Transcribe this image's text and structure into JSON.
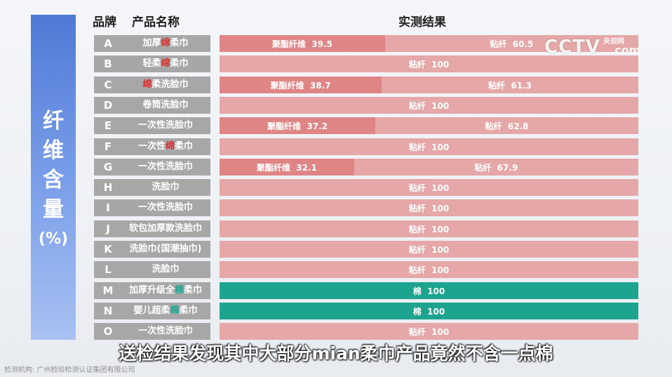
{
  "side_label": {
    "chars": [
      "纤",
      "维",
      "含",
      "量"
    ],
    "unit": "(%)"
  },
  "headers": {
    "brand": "品牌",
    "name": "产品名称",
    "result": "实测结果"
  },
  "logo": {
    "main": "CCTV",
    "sub": "央视网",
    "com": ".com"
  },
  "caption": "送检结果发现其中大部分mian柔巾产品竟然不含一点棉",
  "source": "检测机构: 广州检验检测认证集团有限公司",
  "colors": {
    "polyester": "#df8585",
    "viscose": "#e5a7a7",
    "cotton": "#1ca48e",
    "label_bg": "#a7a7a7",
    "highlight_red": "#e02a2a",
    "highlight_green": "#1ba590"
  },
  "chart_data": {
    "type": "bar",
    "stacked": true,
    "orientation": "horizontal",
    "title": "纤维含量(%)",
    "xlim": [
      0,
      100
    ],
    "rows": [
      {
        "brand": "A",
        "name": [
          "加厚",
          "绵",
          "柔巾"
        ],
        "hl": "red",
        "segments": [
          {
            "fiber": "聚酯纤维",
            "value": 39.5
          },
          {
            "fiber": "粘纤",
            "value": 60.5
          }
        ]
      },
      {
        "brand": "B",
        "name": [
          "轻柔",
          "绵",
          "柔巾"
        ],
        "hl": "red",
        "segments": [
          {
            "fiber": "粘纤",
            "value": 100
          }
        ]
      },
      {
        "brand": "C",
        "name": [
          "",
          "绵",
          "柔洗脸巾"
        ],
        "hl": "red",
        "segments": [
          {
            "fiber": "聚酯纤维",
            "value": 38.7
          },
          {
            "fiber": "粘纤",
            "value": 61.3
          }
        ]
      },
      {
        "brand": "D",
        "name": [
          "卷筒洗脸巾",
          "",
          ""
        ],
        "hl": "",
        "segments": [
          {
            "fiber": "粘纤",
            "value": 100
          }
        ]
      },
      {
        "brand": "E",
        "name": [
          "一次性洗脸巾",
          "",
          ""
        ],
        "hl": "",
        "segments": [
          {
            "fiber": "聚酯纤维",
            "value": 37.2
          },
          {
            "fiber": "粘纤",
            "value": 62.8
          }
        ]
      },
      {
        "brand": "F",
        "name": [
          "一次性",
          "绵",
          "柔巾"
        ],
        "hl": "red",
        "segments": [
          {
            "fiber": "粘纤",
            "value": 100
          }
        ]
      },
      {
        "brand": "G",
        "name": [
          "一次性洗脸巾",
          "",
          ""
        ],
        "hl": "",
        "segments": [
          {
            "fiber": "聚酯纤维",
            "value": 32.1
          },
          {
            "fiber": "粘纤",
            "value": 67.9
          }
        ]
      },
      {
        "brand": "H",
        "name": [
          "洗脸巾",
          "",
          ""
        ],
        "hl": "",
        "segments": [
          {
            "fiber": "粘纤",
            "value": 100
          }
        ]
      },
      {
        "brand": "I",
        "name": [
          "一次性洗脸巾",
          "",
          ""
        ],
        "hl": "",
        "segments": [
          {
            "fiber": "粘纤",
            "value": 100
          }
        ]
      },
      {
        "brand": "J",
        "name": [
          "软包加厚款洗脸巾",
          "",
          ""
        ],
        "hl": "",
        "segments": [
          {
            "fiber": "粘纤",
            "value": 100
          }
        ]
      },
      {
        "brand": "K",
        "name": [
          "洗脸巾(国潮抽巾)",
          "",
          ""
        ],
        "hl": "",
        "segments": [
          {
            "fiber": "粘纤",
            "value": 100
          }
        ]
      },
      {
        "brand": "L",
        "name": [
          "洗脸巾",
          "",
          ""
        ],
        "hl": "",
        "segments": [
          {
            "fiber": "粘纤",
            "value": 100
          }
        ]
      },
      {
        "brand": "M",
        "name": [
          "加厚升级全",
          "棉",
          "柔巾"
        ],
        "hl": "green",
        "segments": [
          {
            "fiber": "棉",
            "value": 100
          }
        ]
      },
      {
        "brand": "N",
        "name": [
          "婴儿超柔",
          "棉",
          "柔巾"
        ],
        "hl": "green",
        "segments": [
          {
            "fiber": "棉",
            "value": 100
          }
        ]
      },
      {
        "brand": "O",
        "name": [
          "一次性洗脸巾",
          "",
          ""
        ],
        "hl": "",
        "segments": [
          {
            "fiber": "粘纤",
            "value": 100
          }
        ]
      }
    ]
  }
}
